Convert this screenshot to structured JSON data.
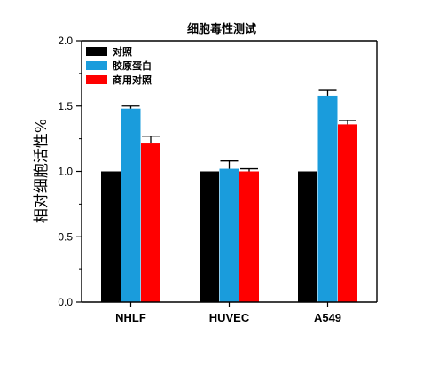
{
  "chart_data": {
    "type": "bar",
    "title": "细胞毒性测试",
    "xlabel": "",
    "ylabel": "相对细胞活性%",
    "ylim": [
      0.0,
      2.0
    ],
    "yticks": [
      "0.0",
      "0.5",
      "1.0",
      "1.5",
      "2.0"
    ],
    "categories": [
      "NHLF",
      "HUVEC",
      "A549"
    ],
    "series": [
      {
        "name": "对照",
        "color": "#000000",
        "values": [
          1.0,
          1.0,
          1.0
        ],
        "errors": [
          0,
          0,
          0
        ]
      },
      {
        "name": "胶原蛋白",
        "color": "#1a9cdc",
        "values": [
          1.48,
          1.02,
          1.58
        ],
        "errors": [
          0.02,
          0.06,
          0.04
        ]
      },
      {
        "name": "商用对照",
        "color": "#ff0000",
        "values": [
          1.22,
          1.0,
          1.36
        ],
        "errors": [
          0.05,
          0.02,
          0.03
        ]
      }
    ],
    "legend_position": "top-left",
    "grid": false
  }
}
